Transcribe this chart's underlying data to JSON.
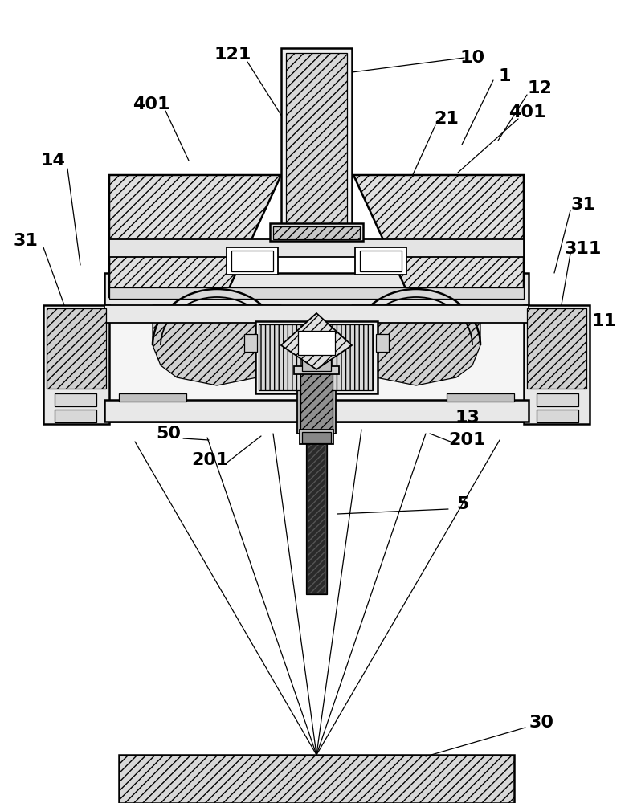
{
  "bg_color": "#ffffff",
  "lc": "#000000",
  "figsize": [
    7.88,
    10.0
  ],
  "dpi": 100,
  "label_fontsize": 16
}
